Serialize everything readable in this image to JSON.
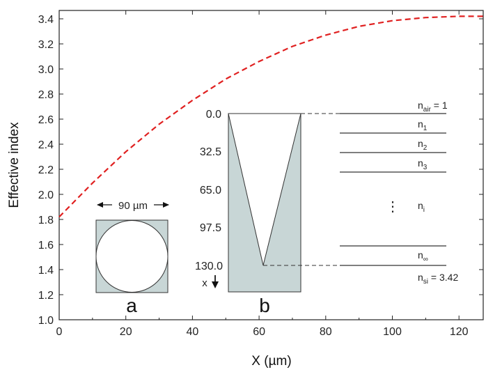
{
  "chart_data": {
    "type": "line",
    "xlabel": "X (µm)",
    "ylabel": "Effective index",
    "xlim": [
      0,
      130
    ],
    "ylim": [
      1.0,
      3.42
    ],
    "x_ticks": [
      "0",
      "20",
      "40",
      "60",
      "80",
      "100",
      "120"
    ],
    "y_ticks": [
      "1.0",
      "1.2",
      "1.4",
      "1.6",
      "1.8",
      "2.0",
      "2.2",
      "2.4",
      "2.6",
      "2.8",
      "3.0",
      "3.2",
      "3.4"
    ],
    "grid": false,
    "series": [
      {
        "style": "dashed",
        "color": "#e02020",
        "x": [
          0,
          10,
          20,
          30,
          40,
          50,
          60,
          70,
          80,
          90,
          100,
          110,
          120,
          130
        ],
        "y": [
          1.82,
          2.09,
          2.34,
          2.56,
          2.75,
          2.92,
          3.06,
          3.18,
          3.27,
          3.34,
          3.385,
          3.41,
          3.42,
          3.42
        ]
      }
    ],
    "inset_a": {
      "width_label": "90 µm",
      "letter": "a"
    },
    "inset_b": {
      "depth_ticks": [
        "0.0",
        "32.5",
        "65.0",
        "97.5",
        "130.0"
      ],
      "axis_label": "x",
      "letter": "b",
      "layers": [
        {
          "base": "n",
          "sub": "air",
          "suffix": " = 1"
        },
        {
          "base": "n",
          "sub": "1",
          "suffix": ""
        },
        {
          "base": "n",
          "sub": "2",
          "suffix": ""
        },
        {
          "base": "n",
          "sub": "3",
          "suffix": ""
        },
        {
          "base": "n",
          "sub": "i",
          "suffix": ""
        },
        {
          "base": "n",
          "sub": "∞",
          "suffix": ""
        },
        {
          "base": "n",
          "sub": "si",
          "suffix": " = 3.42"
        }
      ],
      "ellipsis": "⋮"
    }
  },
  "colors": {
    "curve": "#e02020",
    "inset_fill": "#c8d6d6",
    "axis": "#222222"
  }
}
